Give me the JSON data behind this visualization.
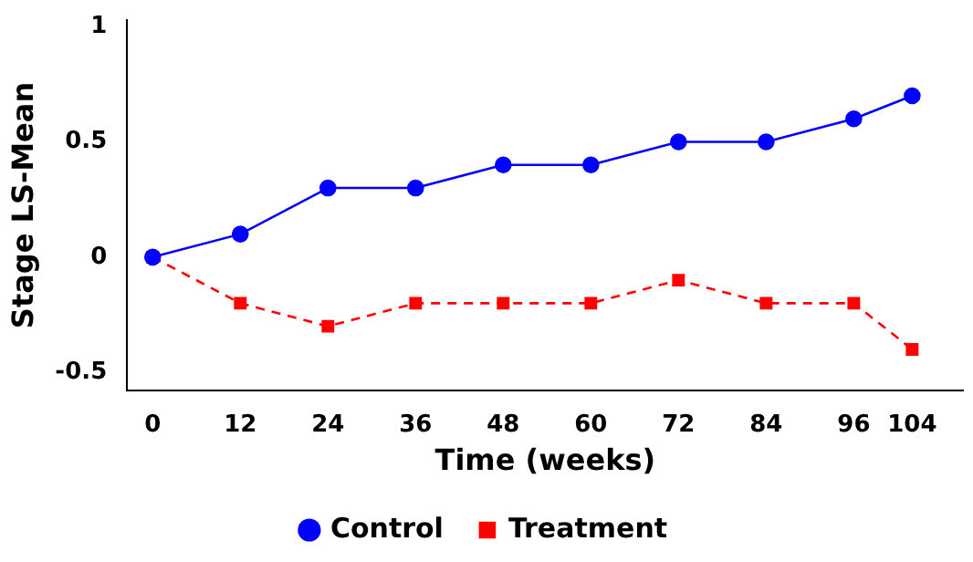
{
  "chart_data": {
    "type": "line",
    "xlabel": "Time (weeks)",
    "ylabel": "Stage LS-Mean",
    "x": [
      0,
      12,
      24,
      36,
      48,
      60,
      72,
      84,
      96,
      104
    ],
    "series": [
      {
        "name": "Control",
        "color": "#0000ff",
        "marker": "circle",
        "line_style": "solid",
        "values": [
          0,
          0.1,
          0.3,
          0.3,
          0.4,
          0.4,
          0.5,
          0.5,
          0.6,
          0.7
        ]
      },
      {
        "name": "Treatment",
        "color": "#ff0000",
        "marker": "square",
        "line_style": "dashed",
        "values": [
          0,
          -0.2,
          -0.3,
          -0.2,
          -0.2,
          -0.2,
          -0.1,
          -0.2,
          -0.2,
          -0.4
        ]
      }
    ],
    "xlim": [
      -3.5,
      111
    ],
    "xticks": [
      0,
      12,
      24,
      36,
      48,
      60,
      72,
      84,
      96,
      104
    ],
    "ylim": [
      -0.58,
      1.03
    ],
    "yticks": [
      -0.5,
      0,
      0.5,
      1
    ],
    "grid": false,
    "legend": "bottom"
  }
}
